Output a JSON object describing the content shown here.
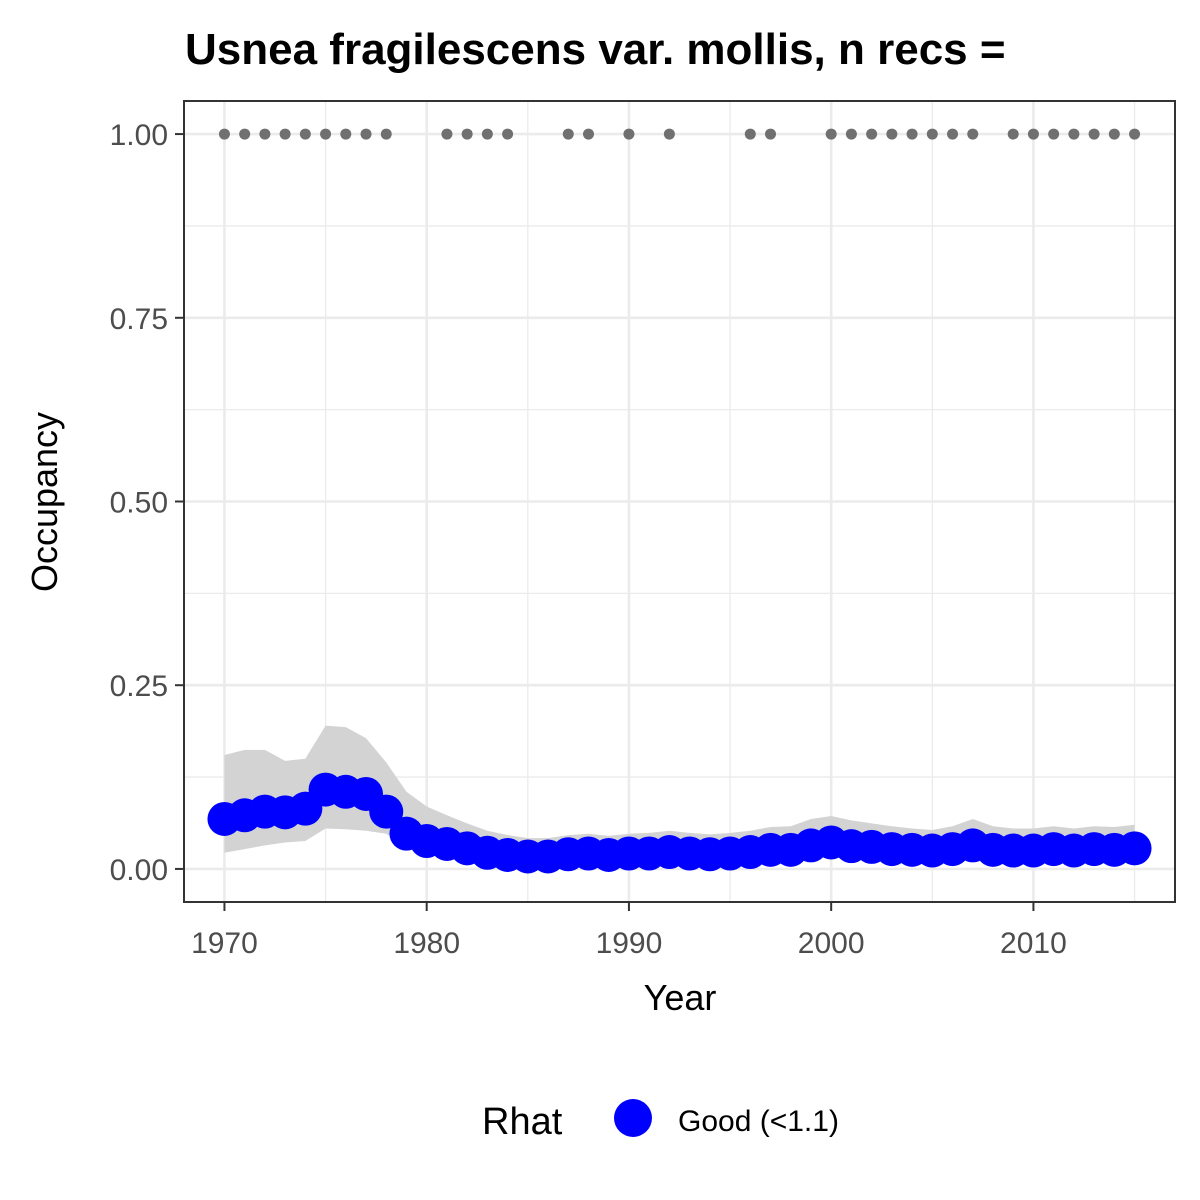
{
  "chart_data": {
    "type": "line",
    "title": "Usnea fragilescens var. mollis, n recs = ",
    "xlabel": "Year",
    "ylabel": "Occupancy",
    "xlim": [
      1968,
      2017
    ],
    "ylim": [
      -0.045,
      1.045
    ],
    "x_ticks": [
      1970,
      1980,
      1990,
      2000,
      2010
    ],
    "x_tick_labels": [
      "1970",
      "1980",
      "1990",
      "2000",
      "2010"
    ],
    "y_ticks": [
      0,
      0.25,
      0.5,
      0.75,
      1.0
    ],
    "y_tick_labels": [
      "0.00",
      "0.25",
      "0.50",
      "0.75",
      "1.00"
    ],
    "grid": true,
    "colors": {
      "series": "#0000ff",
      "ribbon": "#d3d3d3",
      "records": "#707070",
      "grid": "#ebebeb",
      "panel_border": "#333333"
    },
    "series": [
      {
        "name": "Good (<1.1)",
        "x": [
          1970,
          1971,
          1972,
          1973,
          1974,
          1975,
          1976,
          1977,
          1978,
          1979,
          1980,
          1981,
          1982,
          1983,
          1984,
          1985,
          1986,
          1987,
          1988,
          1989,
          1990,
          1991,
          1992,
          1993,
          1994,
          1995,
          1996,
          1997,
          1998,
          1999,
          2000,
          2001,
          2002,
          2003,
          2004,
          2005,
          2006,
          2007,
          2008,
          2009,
          2010,
          2011,
          2012,
          2013,
          2014,
          2015
        ],
        "y": [
          0.068,
          0.073,
          0.078,
          0.077,
          0.082,
          0.108,
          0.105,
          0.102,
          0.078,
          0.048,
          0.038,
          0.034,
          0.028,
          0.022,
          0.019,
          0.017,
          0.017,
          0.02,
          0.021,
          0.019,
          0.021,
          0.021,
          0.023,
          0.021,
          0.02,
          0.021,
          0.023,
          0.026,
          0.026,
          0.032,
          0.036,
          0.031,
          0.03,
          0.027,
          0.026,
          0.025,
          0.027,
          0.032,
          0.026,
          0.025,
          0.025,
          0.027,
          0.025,
          0.027,
          0.026,
          0.028
        ],
        "lower": [
          0.022,
          0.027,
          0.032,
          0.036,
          0.038,
          0.055,
          0.054,
          0.052,
          0.048,
          0.03,
          0.022,
          0.02,
          0.015,
          0.011,
          0.009,
          0.008,
          0.008,
          0.01,
          0.01,
          0.009,
          0.01,
          0.011,
          0.012,
          0.011,
          0.01,
          0.011,
          0.012,
          0.013,
          0.013,
          0.016,
          0.018,
          0.016,
          0.015,
          0.014,
          0.013,
          0.013,
          0.014,
          0.016,
          0.013,
          0.013,
          0.013,
          0.014,
          0.013,
          0.014,
          0.014,
          0.014
        ],
        "upper": [
          0.155,
          0.162,
          0.162,
          0.147,
          0.15,
          0.195,
          0.193,
          0.178,
          0.145,
          0.105,
          0.085,
          0.073,
          0.062,
          0.052,
          0.046,
          0.042,
          0.042,
          0.046,
          0.048,
          0.045,
          0.048,
          0.049,
          0.052,
          0.049,
          0.047,
          0.049,
          0.052,
          0.057,
          0.058,
          0.068,
          0.072,
          0.066,
          0.062,
          0.058,
          0.055,
          0.053,
          0.058,
          0.068,
          0.058,
          0.055,
          0.055,
          0.058,
          0.055,
          0.058,
          0.057,
          0.06
        ]
      }
    ],
    "record_years": [
      1970,
      1971,
      1972,
      1973,
      1974,
      1975,
      1976,
      1977,
      1978,
      1981,
      1982,
      1983,
      1984,
      1987,
      1988,
      1990,
      1992,
      1996,
      1997,
      2000,
      2001,
      2002,
      2003,
      2004,
      2005,
      2006,
      2007,
      2009,
      2010,
      2011,
      2012,
      2013,
      2014,
      2015
    ],
    "record_value": 1.0,
    "legend": {
      "title": "Rhat",
      "entries": [
        "Good (<1.1)"
      ],
      "position": "bottom"
    }
  }
}
